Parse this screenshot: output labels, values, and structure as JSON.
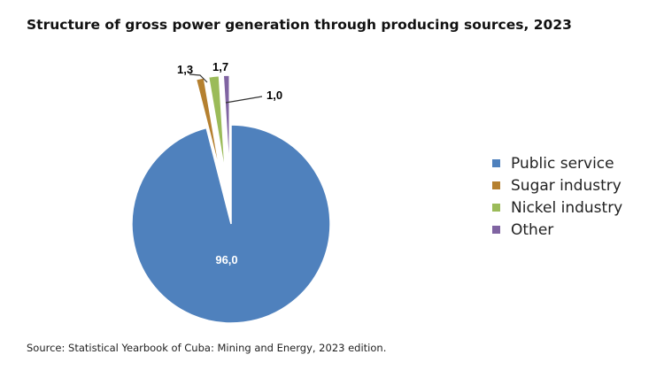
{
  "chart_data": {
    "type": "pie",
    "title": "Structure of gross power generation through producing sources, 2023",
    "source": "Source: Statistical Yearbook of Cuba: Mining and Energy, 2023 edition.",
    "categories": [
      "Public service",
      "Sugar industry",
      "Nickel industry",
      "Other"
    ],
    "values": [
      96.0,
      1.3,
      1.7,
      1.0
    ],
    "data_labels": [
      "96,0",
      "1,3",
      "1,7",
      "1,0"
    ],
    "colors": [
      "#4F81BD",
      "#B5802F",
      "#9BBB59",
      "#8064A2"
    ],
    "exploded": [
      false,
      true,
      true,
      true
    ],
    "legend_position": "right"
  }
}
